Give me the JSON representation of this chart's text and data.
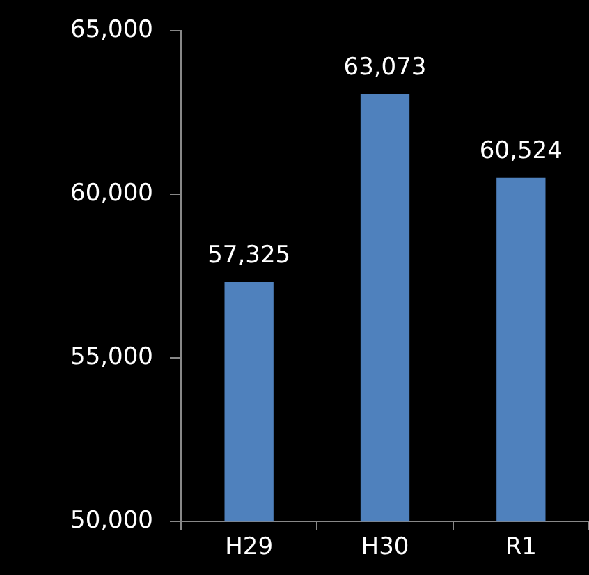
{
  "chart_data": {
    "type": "bar",
    "categories": [
      "H29",
      "H30",
      "R1"
    ],
    "values": [
      57325,
      63073,
      60524
    ],
    "color": "#4f81bd",
    "value_labels": [
      "57,325",
      "63,073",
      "60,524"
    ],
    "ylim": [
      50000,
      65000
    ],
    "yticks": [
      {
        "value": 50000,
        "label": "50,000"
      },
      {
        "value": 55000,
        "label": "55,000"
      },
      {
        "value": 60000,
        "label": "60,000"
      },
      {
        "value": 65000,
        "label": "65,000"
      }
    ],
    "grid": false,
    "legend": false
  }
}
